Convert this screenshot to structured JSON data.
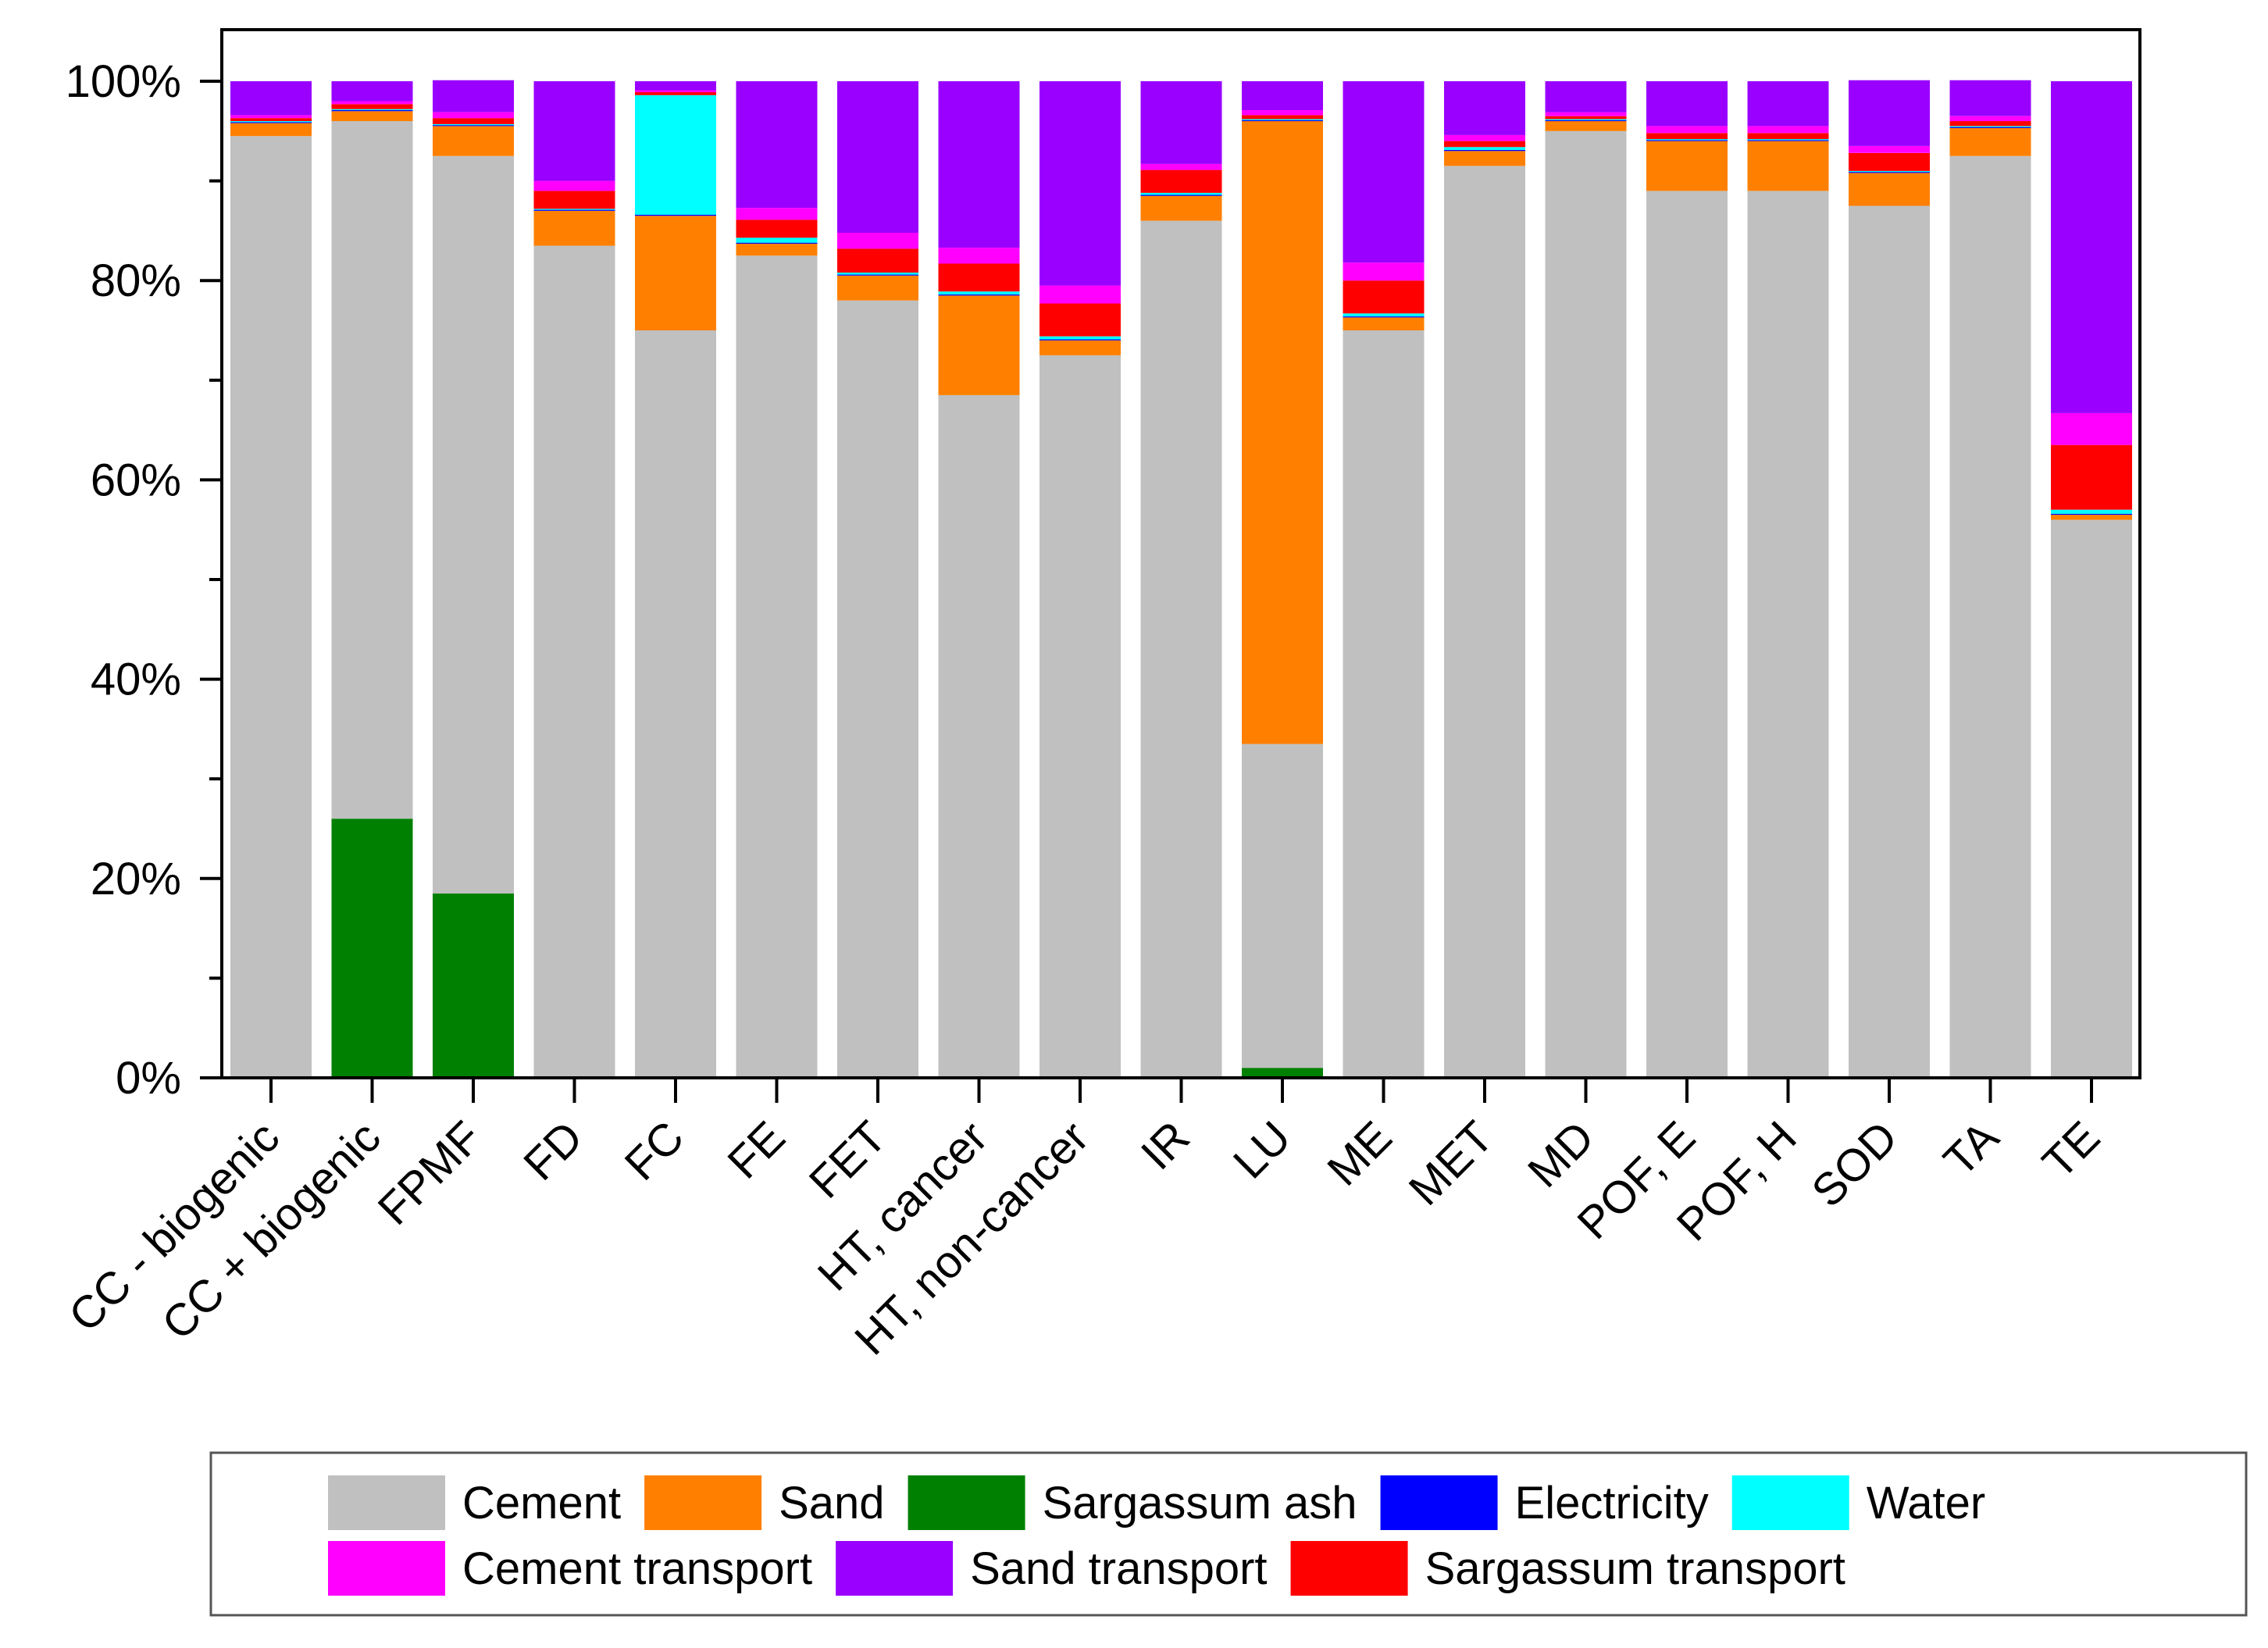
{
  "chart_data": {
    "type": "bar",
    "stacked": true,
    "categories": [
      "CC - biogenic",
      "CC + biogenic",
      "FPMF",
      "FD",
      "FC",
      "FE",
      "FET",
      "HT, cancer",
      "HT, non-cancer",
      "IR",
      "LU",
      "ME",
      "MET",
      "MD",
      "POF, E",
      "POF, H",
      "SOD",
      "TA",
      "TE"
    ],
    "y_ticks": [
      "0%",
      "20%",
      "40%",
      "60%",
      "80%",
      "100%"
    ],
    "ylim": [
      0,
      100
    ],
    "legend_position": "bottom",
    "series": [
      {
        "name": "Sargassum ash",
        "color": "#008000",
        "values": [
          0,
          26,
          18.5,
          0,
          0,
          0,
          0,
          0,
          0,
          0,
          1,
          0,
          0,
          0,
          0,
          0,
          0,
          0,
          0
        ]
      },
      {
        "name": "Cement",
        "color": "#c0c0c0",
        "values": [
          94.5,
          70,
          74,
          83.5,
          75,
          82.5,
          78,
          68.5,
          72.5,
          86,
          32.5,
          75,
          91.5,
          95,
          89,
          89,
          87.5,
          92.5,
          56
        ]
      },
      {
        "name": "Sand",
        "color": "#ff8000",
        "values": [
          1.3,
          1,
          3,
          3.5,
          11.5,
          1.2,
          2.5,
          10,
          1.5,
          2.5,
          62.5,
          1.3,
          1.5,
          1,
          5,
          5,
          3.3,
          2.8,
          0.5
        ]
      },
      {
        "name": "Electricity",
        "color": "#0000ff",
        "values": [
          0.1,
          0.1,
          0.1,
          0.1,
          0.1,
          0.1,
          0.1,
          0.1,
          0.1,
          0.1,
          0.1,
          0.1,
          0.1,
          0.1,
          0.1,
          0.1,
          0.1,
          0.1,
          0.1
        ]
      },
      {
        "name": "Water",
        "color": "#00ffff",
        "values": [
          0.1,
          0.1,
          0.1,
          0.1,
          12,
          0.5,
          0.2,
          0.3,
          0.3,
          0.2,
          0.1,
          0.3,
          0.3,
          0.1,
          0.1,
          0.1,
          0.1,
          0.1,
          0.4
        ]
      },
      {
        "name": "Sargassum transport",
        "color": "#ff0000",
        "values": [
          0.3,
          0.5,
          0.6,
          1.8,
          0.3,
          1.8,
          2.4,
          2.8,
          3.3,
          2.3,
          0.4,
          3.3,
          0.6,
          0.3,
          0.6,
          0.6,
          1.8,
          0.5,
          6.5
        ]
      },
      {
        "name": "Cement transport",
        "color": "#ff00ff",
        "values": [
          0.3,
          0.3,
          0.6,
          1.0,
          0.2,
          1.2,
          1.6,
          1.6,
          1.8,
          0.6,
          0.5,
          1.8,
          0.6,
          0.4,
          0.7,
          0.7,
          0.7,
          0.5,
          3.2
        ]
      },
      {
        "name": "Sand transport",
        "color": "#9900ff",
        "values": [
          3.4,
          2.0,
          3.2,
          10.0,
          0.9,
          12.7,
          15.2,
          16.7,
          20.5,
          8.3,
          2.9,
          18.2,
          5.4,
          3.1,
          4.5,
          4.5,
          6.6,
          3.6,
          33.3
        ]
      }
    ],
    "legend": [
      [
        "Cement",
        "#c0c0c0"
      ],
      [
        "Sand",
        "#ff8000"
      ],
      [
        "Sargassum ash",
        "#008000"
      ],
      [
        "Electricity",
        "#0000ff"
      ],
      [
        "Water",
        "#00ffff"
      ],
      [
        "Cement transport",
        "#ff00ff"
      ],
      [
        "Sand transport",
        "#9900ff"
      ],
      [
        "Sargassum transport",
        "#ff0000"
      ]
    ]
  }
}
